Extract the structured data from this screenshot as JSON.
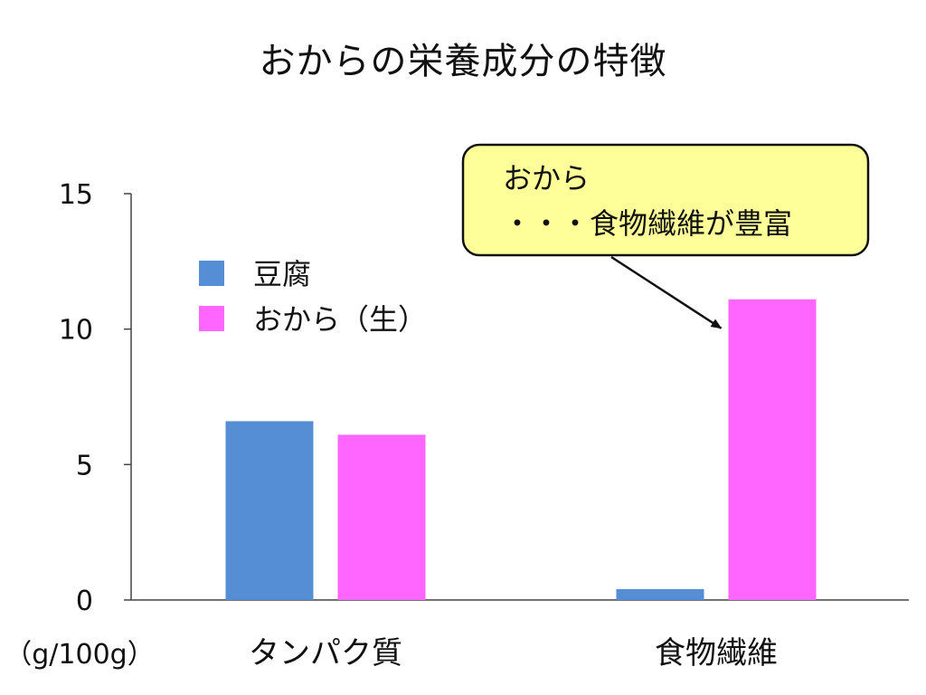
{
  "chart_data": {
    "type": "bar",
    "title": "おからの栄養成分の特徴",
    "unit_label": "（g/100g）",
    "categories": [
      "タンパク質",
      "食物繊維"
    ],
    "series": [
      {
        "name": "豆腐",
        "color": "#558ED5",
        "values": [
          6.6,
          0.4
        ]
      },
      {
        "name": "おから（生）",
        "color": "#FF66FF",
        "values": [
          6.1,
          11.1
        ]
      }
    ],
    "ylim": [
      0,
      15
    ],
    "yticks": [
      0,
      5,
      10,
      15
    ],
    "grid": false,
    "legend": "upper-left",
    "annotation": {
      "lines": [
        "おから",
        "・・・食物繊維が豊富"
      ],
      "background": "#FFFF99",
      "target_category": "食物繊維",
      "target_series": "おから（生）"
    }
  }
}
